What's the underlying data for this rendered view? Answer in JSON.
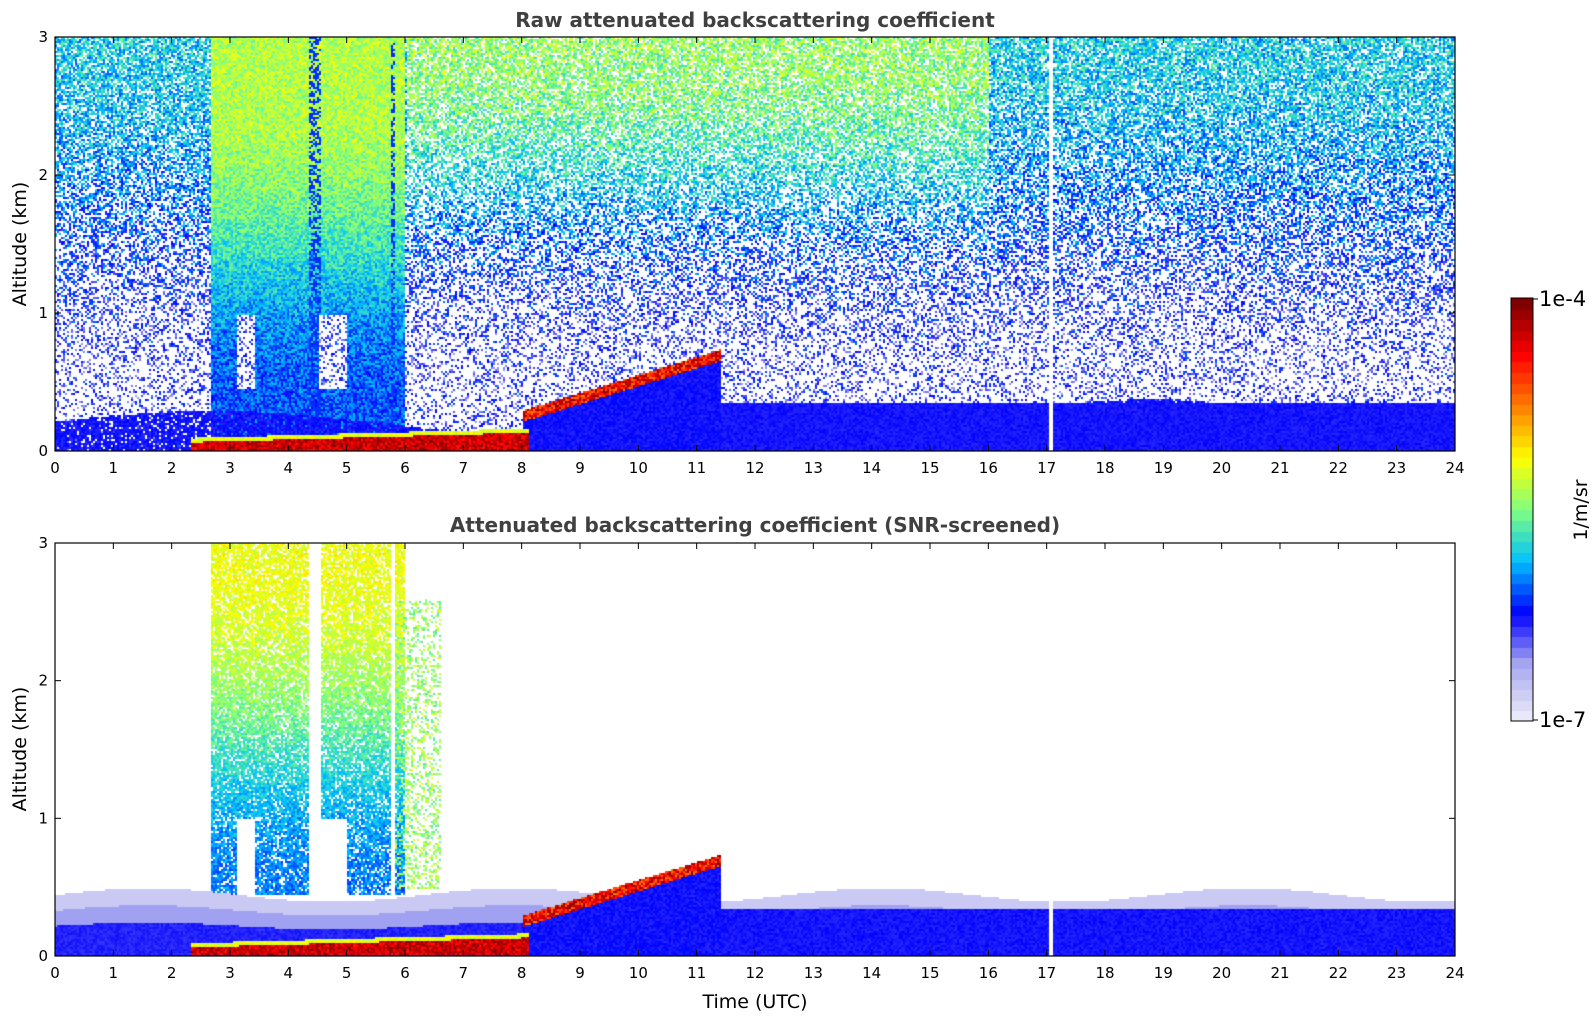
{
  "chart_data": [
    {
      "type": "heatmap",
      "title": "Raw attenuated backscattering coefficient",
      "xlabel": "",
      "ylabel": "Altitude (km)",
      "xlim": [
        0,
        24
      ],
      "ylim": [
        0,
        3
      ],
      "xticks": [
        "0",
        "1",
        "2",
        "3",
        "4",
        "5",
        "6",
        "7",
        "8",
        "9",
        "10",
        "11",
        "12",
        "13",
        "14",
        "15",
        "16",
        "17",
        "18",
        "19",
        "20",
        "21",
        "22",
        "23",
        "24"
      ],
      "yticks": [
        "0",
        "1",
        "2",
        "3"
      ],
      "screened": false,
      "features": [
        {
          "name": "low-level aerosol layer",
          "x_range": [
            0,
            24
          ],
          "top_km": 0.25,
          "intensity": 0.25
        },
        {
          "name": "strong near-surface layer",
          "x_range": [
            2.3,
            8.1
          ],
          "top_km": 0.12,
          "intensity": 1.0
        },
        {
          "name": "rising layer",
          "x_range": [
            8.0,
            11.4
          ],
          "top_km": [
            0.35,
            0.8
          ],
          "intensity": 0.9
        },
        {
          "name": "precipitation / high signal",
          "x_range": [
            2.6,
            6.0
          ],
          "top_km": 3.0,
          "intensity": 0.55
        },
        {
          "name": "background noise",
          "x_range": [
            0,
            24
          ],
          "top_km": 3.0,
          "intensity": 0.3
        }
      ]
    },
    {
      "type": "heatmap",
      "title": "Attenuated backscattering coefficient (SNR-screened)",
      "xlabel": "Time (UTC)",
      "ylabel": "Altitude (km)",
      "xlim": [
        0,
        24
      ],
      "ylim": [
        0,
        3
      ],
      "xticks": [
        "0",
        "1",
        "2",
        "3",
        "4",
        "5",
        "6",
        "7",
        "8",
        "9",
        "10",
        "11",
        "12",
        "13",
        "14",
        "15",
        "16",
        "17",
        "18",
        "19",
        "20",
        "21",
        "22",
        "23",
        "24"
      ],
      "yticks": [
        "0",
        "1",
        "2",
        "3"
      ],
      "screened": true,
      "features": [
        {
          "name": "boundary layer",
          "x_range": [
            0,
            24
          ],
          "top_km": 0.5,
          "intensity": 0.2
        },
        {
          "name": "strong near-surface layer",
          "x_range": [
            2.3,
            8.1
          ],
          "top_km": 0.12,
          "intensity": 1.0
        },
        {
          "name": "rising layer",
          "x_range": [
            8.0,
            11.4
          ],
          "top_km": [
            0.35,
            0.8
          ],
          "intensity": 0.9
        },
        {
          "name": "precipitation columns",
          "x_range": [
            2.7,
            5.7
          ],
          "top_km": 3.0,
          "intensity": 0.55
        }
      ]
    }
  ],
  "colorbar": {
    "label": "1/m/sr",
    "max_label": "1e-4",
    "min_label": "1e-7",
    "colors": [
      "#e8e8f8",
      "#a8a8f0",
      "#0000ff",
      "#00c0ff",
      "#80ff80",
      "#ffff00",
      "#ff8000",
      "#ff0000",
      "#800000"
    ]
  }
}
